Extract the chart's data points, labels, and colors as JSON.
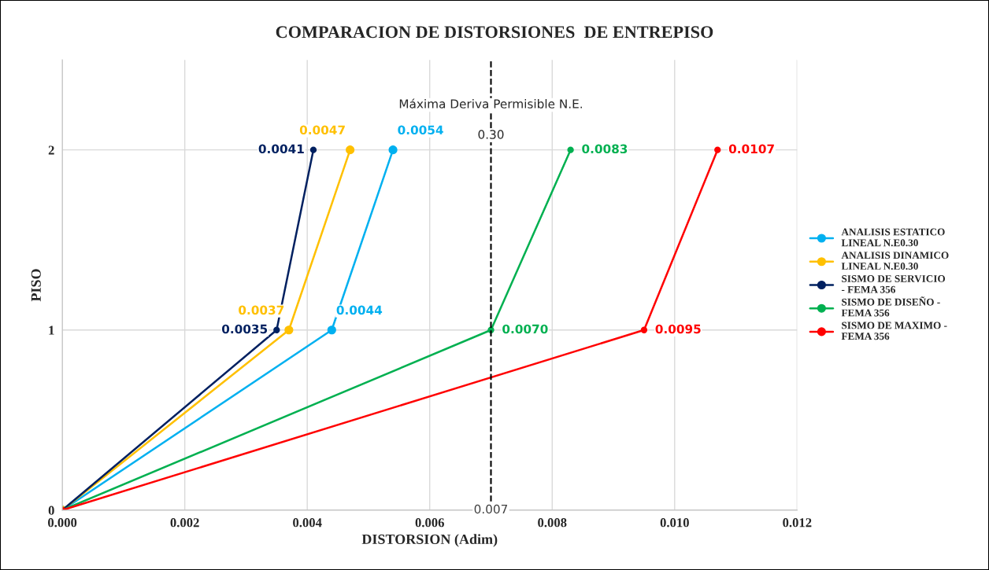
{
  "chart_data": {
    "type": "line",
    "title": "COMPARACION DE DISTORSIONES  DE ENTREPISO",
    "xlabel": "DISTORSION (Adim)",
    "ylabel": "PISO",
    "xlim": [
      0,
      0.012
    ],
    "xticks": [
      {
        "value": 0,
        "label": "0.000"
      },
      {
        "value": 0.002,
        "label": "0.002"
      },
      {
        "value": 0.004,
        "label": "0.004"
      },
      {
        "value": 0.006,
        "label": "0.006"
      },
      {
        "value": 0.008,
        "label": "0.008"
      },
      {
        "value": 0.01,
        "label": "0.010"
      },
      {
        "value": 0.012,
        "label": "0.012"
      }
    ],
    "ylim": [
      0,
      2.5
    ],
    "yticks": [
      0,
      1,
      2
    ],
    "grid": true,
    "legend": "right",
    "marker": "circle",
    "line_style": "solid",
    "series": [
      {
        "name": "ANALISIS ESTATICO LINEAL N.E0.30",
        "color": "#00b0f0",
        "x": [
          0,
          0.0044,
          0.0054
        ],
        "values": [
          0,
          1,
          2
        ]
      },
      {
        "name": "ANALISIS DINAMICO LINEAL N.E0.30",
        "color": "#ffc000",
        "x": [
          0,
          0.0037,
          0.0047
        ],
        "values": [
          0,
          1,
          2
        ]
      },
      {
        "name": "SISMO DE SERVICIO - FEMA 356",
        "color": "#002060",
        "x": [
          0,
          0.0035,
          0.0041
        ],
        "values": [
          0,
          1,
          2
        ]
      },
      {
        "name": "SISMO DE DISEÑO - FEMA 356",
        "color": "#00b050",
        "x": [
          0,
          0.007,
          0.0083
        ],
        "values": [
          0,
          1,
          2
        ]
      },
      {
        "name": "SISMO DE MAXIMO - FEMA 356",
        "color": "#ff0000",
        "x": [
          0,
          0.0095,
          0.0107
        ],
        "values": [
          0,
          1,
          2
        ]
      }
    ],
    "ref_lines": [
      {
        "axis": "x",
        "value": 0.007,
        "label": "0.007",
        "color": "#000000",
        "line_style": "dashed"
      }
    ],
    "annotations": [
      {
        "text": "Máxima Deriva Permisible N.E.",
        "x": 0.007,
        "y": 2.25
      },
      {
        "text": "0.30",
        "x": 0.007,
        "y": 2.08
      },
      {
        "text": "0.0044",
        "x": 0.0044,
        "y": 1
      },
      {
        "text": "0.0054",
        "x": 0.0054,
        "y": 2
      },
      {
        "text": "0.0037",
        "x": 0.0037,
        "y": 1
      },
      {
        "text": "0.0047",
        "x": 0.0047,
        "y": 2
      },
      {
        "text": "0.0035",
        "x": 0.0035,
        "y": 1
      },
      {
        "text": "0.0041",
        "x": 0.0041,
        "y": 2
      },
      {
        "text": "0.0070",
        "x": 0.007,
        "y": 1
      },
      {
        "text": "0.0083",
        "x": 0.0083,
        "y": 2
      },
      {
        "text": "0.0095",
        "x": 0.0095,
        "y": 1
      },
      {
        "text": "0.0107",
        "x": 0.0107,
        "y": 2
      }
    ]
  }
}
